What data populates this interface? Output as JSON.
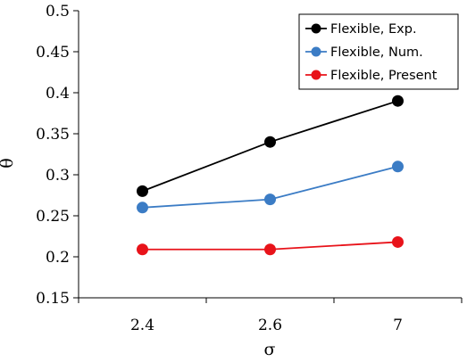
{
  "chart_data": {
    "type": "line",
    "categories": [
      "2.4",
      "2.6",
      "7"
    ],
    "xlabel": "σ",
    "ylabel": "θ",
    "ylim": [
      0.15,
      0.5
    ],
    "yticks": [
      "0.15",
      "0.2",
      "0.25",
      "0.3",
      "0.35",
      "0.4",
      "0.45",
      "0.5"
    ],
    "grid": false,
    "legend_position": "top-right",
    "series": [
      {
        "name": "Flexible, Exp.",
        "color": "#000000",
        "values": [
          0.28,
          0.34,
          0.39
        ]
      },
      {
        "name": "Flexible, Num.",
        "color": "#3b7cc5",
        "values": [
          0.26,
          0.27,
          0.31
        ]
      },
      {
        "name": "Flexible, Present",
        "color": "#e8131a",
        "values": [
          0.209,
          0.209,
          0.218
        ]
      }
    ]
  }
}
